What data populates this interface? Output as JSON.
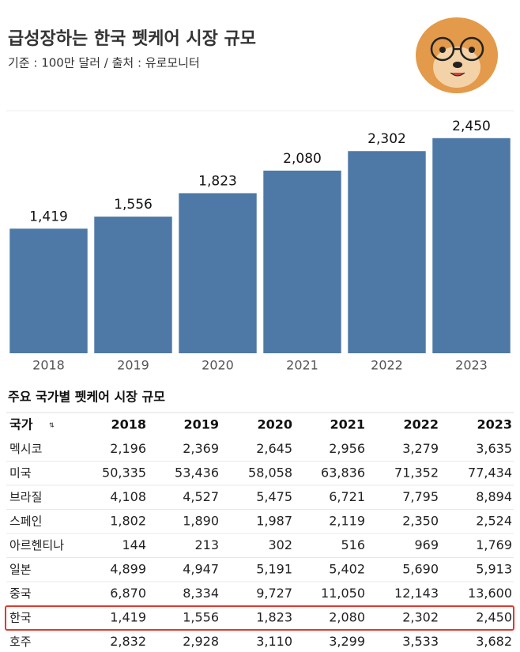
{
  "chart_data": {
    "type": "bar",
    "title": "급성장하는 한국 펫케어 시장 규모",
    "subtitle": "기준 : 100만 달러 / 출처 : 유로모니터",
    "categories": [
      "2018",
      "2019",
      "2020",
      "2021",
      "2022",
      "2023"
    ],
    "values": [
      1419,
      1556,
      1823,
      2080,
      2302,
      2450
    ],
    "value_labels": [
      "1,419",
      "1,556",
      "1,823",
      "2,080",
      "2,302",
      "2,450"
    ],
    "color": "#4e79a7",
    "ylim": [
      0,
      2700
    ]
  },
  "table": {
    "title": "주요 국가별 펫케어 시장 규모",
    "header": [
      "국가",
      "2018",
      "2019",
      "2020",
      "2021",
      "2022",
      "2023"
    ],
    "rows": [
      [
        "멕시코",
        "2,196",
        "2,369",
        "2,645",
        "2,956",
        "3,279",
        "3,635"
      ],
      [
        "미국",
        "50,335",
        "53,436",
        "58,058",
        "63,836",
        "71,352",
        "77,434"
      ],
      [
        "브라질",
        "4,108",
        "4,527",
        "5,475",
        "6,721",
        "7,795",
        "8,894"
      ],
      [
        "스페인",
        "1,802",
        "1,890",
        "1,987",
        "2,119",
        "2,350",
        "2,524"
      ],
      [
        "아르헨티나",
        "144",
        "213",
        "302",
        "516",
        "969",
        "1,769"
      ],
      [
        "일본",
        "4,899",
        "4,947",
        "5,191",
        "5,402",
        "5,690",
        "5,913"
      ],
      [
        "중국",
        "6,870",
        "8,334",
        "9,727",
        "11,050",
        "12,143",
        "13,600"
      ],
      [
        "한국",
        "1,419",
        "1,556",
        "1,823",
        "2,080",
        "2,302",
        "2,450"
      ],
      [
        "호주",
        "2,832",
        "2,928",
        "3,110",
        "3,299",
        "3,533",
        "3,682"
      ]
    ],
    "highlight_row": 7,
    "highlight_color": "#e03a2f"
  }
}
